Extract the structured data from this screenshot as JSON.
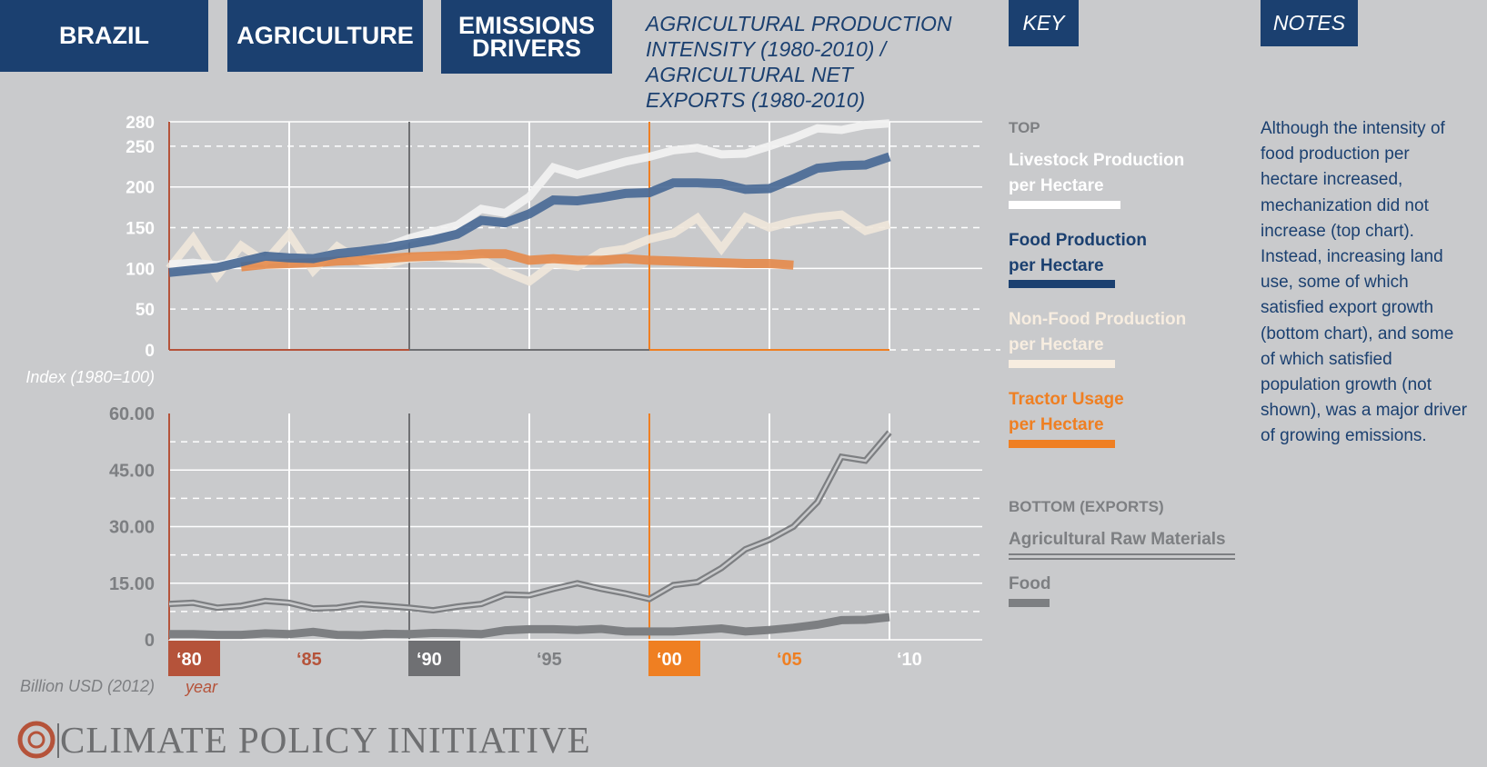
{
  "header": {
    "tab_country": "BRAZIL",
    "tab_sector": "AGRICULTURE",
    "tab_topic_line1": "EMISSIONS",
    "tab_topic_line2": "DRIVERS",
    "subtitle": "AGRICULTURAL PRODUCTION INTENSITY (1980-2010) / AGRICULTURAL NET EXPORTS (1980-2010)",
    "key_tab": "KEY",
    "notes_tab": "NOTES"
  },
  "key": {
    "top_heading": "TOP",
    "top_items": [
      {
        "line1": "Livestock Production",
        "line2": "per Hectare",
        "color": "#ffffff"
      },
      {
        "line1": "Food Production",
        "line2": "per Hectare",
        "color": "#1b4070"
      },
      {
        "line1": "Non-Food Production",
        "line2": "per Hectare",
        "color": "#f7ede0"
      },
      {
        "line1": "Tractor Usage",
        "line2": "per Hectare",
        "color": "#ef7f22"
      }
    ],
    "bottom_heading": "BOTTOM (EXPORTS)",
    "bottom_items": [
      {
        "label": "Agricultural Raw Materials",
        "color": "#7d7f82",
        "style": "double"
      },
      {
        "label": "Food",
        "color": "#7d7f82",
        "style": "solid"
      }
    ]
  },
  "notes": "Although the intensity of food production per hectare increased, mechanization did not increase (top chart). Instead, increasing land use, some of which satisfied export growth (bottom chart), and some of which satisfied population growth (not shown), was a major driver of growing emissions.",
  "footer": {
    "logo_text": "CLIMATE POLICY INITIATIVE"
  },
  "colors": {
    "navy": "#1b4070",
    "orange": "#ef7f22",
    "rust": "#b5533a",
    "gray": "#7d7f82",
    "background": "#c9cacc"
  },
  "chart_data": [
    {
      "type": "line",
      "ylabel": "Index (1980=100)",
      "yticks": [
        0,
        50,
        100,
        150,
        200,
        250,
        280
      ],
      "ylim": [
        0,
        280
      ],
      "x": [
        1980,
        1981,
        1982,
        1983,
        1984,
        1985,
        1986,
        1987,
        1988,
        1989,
        1990,
        1991,
        1992,
        1993,
        1994,
        1995,
        1996,
        1997,
        1998,
        1999,
        2000,
        2001,
        2002,
        2003,
        2004,
        2005,
        2006,
        2007,
        2008,
        2009,
        2010
      ],
      "series": [
        {
          "name": "Livestock Production per Hectare",
          "color": "#f2f2f2",
          "values": [
            105,
            107,
            104,
            109,
            110,
            113,
            112,
            118,
            120,
            126,
            137,
            145,
            153,
            173,
            168,
            188,
            224,
            215,
            223,
            231,
            237,
            245,
            248,
            240,
            241,
            250,
            260,
            272,
            270,
            276,
            278
          ]
        },
        {
          "name": "Food Production per Hectare",
          "color": "#4a6a96",
          "values": [
            95,
            98,
            101,
            108,
            115,
            113,
            112,
            118,
            121,
            125,
            130,
            135,
            142,
            159,
            156,
            167,
            184,
            183,
            187,
            192,
            193,
            205,
            205,
            204,
            197,
            198,
            210,
            223,
            226,
            227,
            237
          ]
        },
        {
          "name": "Non-Food Production per Hectare",
          "color": "#efe6da",
          "values": [
            100,
            137,
            91,
            128,
            108,
            142,
            97,
            127,
            108,
            105,
            112,
            114,
            112,
            111,
            96,
            84,
            106,
            102,
            120,
            124,
            136,
            143,
            162,
            124,
            163,
            150,
            158,
            163,
            166,
            146,
            154
          ]
        },
        {
          "name": "Tractor Usage per Hectare",
          "color": "#e5894a",
          "values": [
            null,
            null,
            null,
            102,
            105,
            106,
            107,
            109,
            110,
            112,
            114,
            115,
            116,
            118,
            118,
            110,
            112,
            110,
            110,
            112,
            110,
            109,
            108,
            107,
            106,
            106,
            104,
            null,
            null,
            null,
            null
          ]
        }
      ]
    },
    {
      "type": "line",
      "ylabel": "Billion USD (2012)",
      "xlabel": "year",
      "yticks": [
        0,
        15.0,
        30.0,
        45.0,
        60.0
      ],
      "ytick_labels": [
        "0",
        "15.00",
        "30.00",
        "45.00",
        "60.00"
      ],
      "ylim": [
        0,
        60
      ],
      "xticks": [
        "‘80",
        "‘85",
        "‘90",
        "‘95",
        "‘00",
        "‘05",
        "‘10"
      ],
      "x": [
        1980,
        1981,
        1982,
        1983,
        1984,
        1985,
        1986,
        1987,
        1988,
        1989,
        1990,
        1991,
        1992,
        1993,
        1994,
        1995,
        1996,
        1997,
        1998,
        1999,
        2000,
        2001,
        2002,
        2003,
        2004,
        2005,
        2006,
        2007,
        2008,
        2009,
        2010
      ],
      "series": [
        {
          "name": "Agricultural Raw Materials",
          "color": "#7d7f82",
          "style": "double",
          "values": [
            9.5,
            9.8,
            8.5,
            9.0,
            10.3,
            9.8,
            8.3,
            8.5,
            9.5,
            9.0,
            8.5,
            7.8,
            8.8,
            9.5,
            12.0,
            11.8,
            13.5,
            15.0,
            13.5,
            12.3,
            10.8,
            14.5,
            15.3,
            19.0,
            24.0,
            26.5,
            30.0,
            36.5,
            48.5,
            47.5,
            55.0
          ]
        },
        {
          "name": "Food",
          "color": "#7d7f82",
          "style": "solid",
          "values": [
            1.5,
            1.5,
            1.3,
            1.3,
            1.7,
            1.5,
            2.1,
            1.3,
            1.2,
            1.6,
            1.5,
            1.8,
            1.7,
            1.5,
            2.5,
            2.8,
            2.8,
            2.6,
            2.9,
            2.2,
            2.2,
            2.2,
            2.6,
            3.0,
            2.2,
            2.6,
            3.2,
            4.0,
            5.2,
            5.3,
            6.0
          ]
        }
      ]
    }
  ]
}
